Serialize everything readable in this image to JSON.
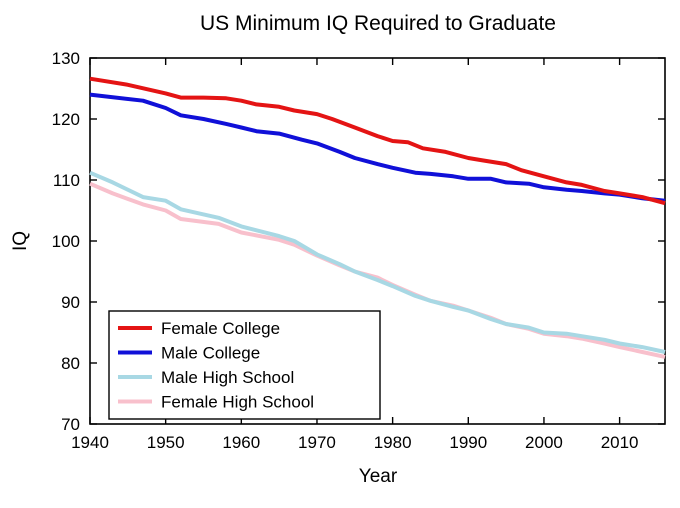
{
  "chart_data": {
    "type": "line",
    "title": "US Minimum IQ Required to Graduate",
    "xlabel": "Year",
    "ylabel": "IQ",
    "xlim": [
      1940,
      2016
    ],
    "ylim": [
      70,
      130
    ],
    "xticks": [
      1940,
      1950,
      1960,
      1970,
      1980,
      1990,
      2000,
      2010
    ],
    "yticks": [
      70,
      80,
      90,
      100,
      110,
      120,
      130
    ],
    "grid": false,
    "legend_position": "bottom-left",
    "series": [
      {
        "name": "Female College",
        "color": "#e41414",
        "points": [
          [
            1940,
            126.6
          ],
          [
            1945,
            125.6
          ],
          [
            1950,
            124.2
          ],
          [
            1952,
            123.5
          ],
          [
            1955,
            123.5
          ],
          [
            1958,
            123.4
          ],
          [
            1960,
            123.0
          ],
          [
            1962,
            122.4
          ],
          [
            1965,
            122.0
          ],
          [
            1967,
            121.4
          ],
          [
            1970,
            120.8
          ],
          [
            1972,
            120.0
          ],
          [
            1975,
            118.6
          ],
          [
            1978,
            117.2
          ],
          [
            1980,
            116.4
          ],
          [
            1982,
            116.2
          ],
          [
            1984,
            115.2
          ],
          [
            1987,
            114.6
          ],
          [
            1990,
            113.6
          ],
          [
            1992,
            113.2
          ],
          [
            1995,
            112.6
          ],
          [
            1997,
            111.6
          ],
          [
            2000,
            110.6
          ],
          [
            2003,
            109.6
          ],
          [
            2005,
            109.2
          ],
          [
            2008,
            108.2
          ],
          [
            2010,
            107.8
          ],
          [
            2013,
            107.2
          ],
          [
            2016,
            106.2
          ]
        ]
      },
      {
        "name": "Male College",
        "color": "#1010d8",
        "points": [
          [
            1940,
            124.0
          ],
          [
            1947,
            123.0
          ],
          [
            1950,
            121.8
          ],
          [
            1952,
            120.6
          ],
          [
            1955,
            120.0
          ],
          [
            1958,
            119.2
          ],
          [
            1960,
            118.6
          ],
          [
            1962,
            118.0
          ],
          [
            1965,
            117.6
          ],
          [
            1968,
            116.6
          ],
          [
            1970,
            116.0
          ],
          [
            1973,
            114.6
          ],
          [
            1975,
            113.6
          ],
          [
            1978,
            112.6
          ],
          [
            1980,
            112.0
          ],
          [
            1983,
            111.2
          ],
          [
            1985,
            111.0
          ],
          [
            1988,
            110.6
          ],
          [
            1990,
            110.2
          ],
          [
            1993,
            110.2
          ],
          [
            1995,
            109.6
          ],
          [
            1998,
            109.4
          ],
          [
            2000,
            108.8
          ],
          [
            2003,
            108.4
          ],
          [
            2005,
            108.2
          ],
          [
            2008,
            107.8
          ],
          [
            2010,
            107.6
          ],
          [
            2013,
            107.0
          ],
          [
            2016,
            106.6
          ]
        ]
      },
      {
        "name": "Male High School",
        "color": "#a8d8e4",
        "points": [
          [
            1940,
            111.2
          ],
          [
            1943,
            109.6
          ],
          [
            1947,
            107.2
          ],
          [
            1950,
            106.6
          ],
          [
            1952,
            105.2
          ],
          [
            1957,
            103.8
          ],
          [
            1960,
            102.4
          ],
          [
            1965,
            100.8
          ],
          [
            1967,
            100.0
          ],
          [
            1970,
            97.8
          ],
          [
            1973,
            96.2
          ],
          [
            1975,
            95.0
          ],
          [
            1978,
            93.6
          ],
          [
            1980,
            92.6
          ],
          [
            1983,
            91.0
          ],
          [
            1985,
            90.2
          ],
          [
            1988,
            89.2
          ],
          [
            1990,
            88.6
          ],
          [
            1993,
            87.2
          ],
          [
            1995,
            86.4
          ],
          [
            1998,
            85.8
          ],
          [
            2000,
            85.0
          ],
          [
            2003,
            84.8
          ],
          [
            2005,
            84.4
          ],
          [
            2008,
            83.8
          ],
          [
            2010,
            83.2
          ],
          [
            2013,
            82.6
          ],
          [
            2016,
            81.8
          ]
        ]
      },
      {
        "name": "Female High School",
        "color": "#f8c0cc",
        "points": [
          [
            1940,
            109.4
          ],
          [
            1943,
            107.8
          ],
          [
            1947,
            106.0
          ],
          [
            1950,
            105.0
          ],
          [
            1952,
            103.6
          ],
          [
            1957,
            102.8
          ],
          [
            1960,
            101.4
          ],
          [
            1965,
            100.2
          ],
          [
            1967,
            99.4
          ],
          [
            1970,
            97.6
          ],
          [
            1973,
            96.0
          ],
          [
            1975,
            95.0
          ],
          [
            1978,
            94.0
          ],
          [
            1980,
            92.8
          ],
          [
            1983,
            91.2
          ],
          [
            1985,
            90.2
          ],
          [
            1988,
            89.4
          ],
          [
            1990,
            88.6
          ],
          [
            1993,
            87.4
          ],
          [
            1995,
            86.4
          ],
          [
            1998,
            85.6
          ],
          [
            2000,
            84.8
          ],
          [
            2003,
            84.4
          ],
          [
            2005,
            84.0
          ],
          [
            2008,
            83.2
          ],
          [
            2010,
            82.6
          ],
          [
            2013,
            81.8
          ],
          [
            2016,
            81.0
          ]
        ]
      }
    ]
  }
}
